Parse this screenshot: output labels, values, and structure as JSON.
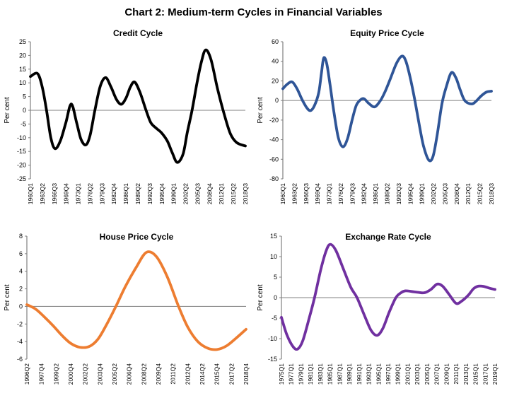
{
  "figure_title": "Chart 2: Medium-term Cycles in Financial Variables",
  "axis": {
    "line_color": "#808080",
    "text_color": "#000000"
  },
  "chart_data": [
    {
      "type": "line",
      "title": "Credit Cycle",
      "ylabel": "Per cent",
      "ylim": [
        -25,
        25
      ],
      "ytick_step": 5,
      "grid": false,
      "legend": "none",
      "line_color": "#000000",
      "x_tick_labels": [
        "1960Q1",
        "1963Q2",
        "1966Q3",
        "1969Q4",
        "1973Q1",
        "1976Q2",
        "1979Q3",
        "1982Q4",
        "1986Q1",
        "1989Q2",
        "1992Q3",
        "1995Q4",
        "1999Q1",
        "2002Q2",
        "2005Q3",
        "2008Q4",
        "2012Q1",
        "2015Q2",
        "2018Q3"
      ],
      "points": [
        [
          0,
          12.3
        ],
        [
          0.033,
          13.4
        ],
        [
          0.055,
          8.5
        ],
        [
          0.075,
          0
        ],
        [
          0.095,
          -10
        ],
        [
          0.115,
          -14
        ],
        [
          0.14,
          -11
        ],
        [
          0.165,
          -4.5
        ],
        [
          0.19,
          2.3
        ],
        [
          0.215,
          -4.5
        ],
        [
          0.235,
          -10.5
        ],
        [
          0.258,
          -12.6
        ],
        [
          0.278,
          -9
        ],
        [
          0.3,
          0
        ],
        [
          0.325,
          8.8
        ],
        [
          0.35,
          11.9
        ],
        [
          0.375,
          8.5
        ],
        [
          0.4,
          4
        ],
        [
          0.423,
          2.2
        ],
        [
          0.445,
          4.5
        ],
        [
          0.465,
          8.5
        ],
        [
          0.485,
          10.3
        ],
        [
          0.51,
          6.5
        ],
        [
          0.538,
          0
        ],
        [
          0.56,
          -4.5
        ],
        [
          0.585,
          -6.5
        ],
        [
          0.61,
          -8.2
        ],
        [
          0.637,
          -11.2
        ],
        [
          0.66,
          -15.5
        ],
        [
          0.683,
          -19
        ],
        [
          0.71,
          -16
        ],
        [
          0.73,
          -8
        ],
        [
          0.752,
          0
        ],
        [
          0.775,
          10
        ],
        [
          0.795,
          17.5
        ],
        [
          0.815,
          22
        ],
        [
          0.84,
          18.5
        ],
        [
          0.87,
          8
        ],
        [
          0.9,
          -1
        ],
        [
          0.93,
          -8.5
        ],
        [
          0.96,
          -11.8
        ],
        [
          1,
          -13
        ]
      ]
    },
    {
      "type": "line",
      "title": "Equity Price Cycle",
      "ylabel": "Per cent",
      "ylim": [
        -80,
        60
      ],
      "ytick_step": 20,
      "grid": false,
      "legend": "none",
      "line_color": "#2F5597",
      "x_tick_labels": [
        "1960Q1",
        "1963Q2",
        "1966Q3",
        "1969Q4",
        "1973Q1",
        "1976Q2",
        "1979Q3",
        "1982Q4",
        "1986Q1",
        "1989Q2",
        "1992Q3",
        "1995Q4",
        "1999Q1",
        "2002Q2",
        "2005Q3",
        "2008Q4",
        "2012Q1",
        "2015Q2",
        "2018Q3"
      ],
      "points": [
        [
          0,
          12
        ],
        [
          0.022,
          16.8
        ],
        [
          0.045,
          18.9
        ],
        [
          0.068,
          12
        ],
        [
          0.092,
          1
        ],
        [
          0.115,
          -7.5
        ],
        [
          0.133,
          -10.3
        ],
        [
          0.152,
          -5
        ],
        [
          0.172,
          8
        ],
        [
          0.185,
          28
        ],
        [
          0.196,
          43.4
        ],
        [
          0.21,
          38
        ],
        [
          0.225,
          18
        ],
        [
          0.245,
          -12
        ],
        [
          0.266,
          -38
        ],
        [
          0.288,
          -47.3
        ],
        [
          0.31,
          -39
        ],
        [
          0.332,
          -20
        ],
        [
          0.352,
          -5
        ],
        [
          0.373,
          0.8
        ],
        [
          0.39,
          1.7
        ],
        [
          0.412,
          -3
        ],
        [
          0.44,
          -6.5
        ],
        [
          0.468,
          0
        ],
        [
          0.49,
          9
        ],
        [
          0.515,
          22
        ],
        [
          0.545,
          38
        ],
        [
          0.571,
          45.3
        ],
        [
          0.59,
          40
        ],
        [
          0.612,
          22
        ],
        [
          0.633,
          0
        ],
        [
          0.655,
          -26
        ],
        [
          0.675,
          -47
        ],
        [
          0.7,
          -61
        ],
        [
          0.72,
          -57
        ],
        [
          0.74,
          -35
        ],
        [
          0.763,
          -3
        ],
        [
          0.785,
          15
        ],
        [
          0.808,
          28.5
        ],
        [
          0.83,
          23
        ],
        [
          0.85,
          11
        ],
        [
          0.872,
          0
        ],
        [
          0.904,
          -3.5
        ],
        [
          0.925,
          -1
        ],
        [
          0.95,
          4.5
        ],
        [
          0.975,
          8.5
        ],
        [
          1,
          9.5
        ]
      ]
    },
    {
      "type": "line",
      "title": "House Price Cycle",
      "ylabel": "Per cent",
      "ylim": [
        -6,
        8
      ],
      "ytick_step": 2,
      "grid": false,
      "legend": "none",
      "line_color": "#ED7D31",
      "x_tick_labels": [
        "1996Q2",
        "1997Q4",
        "1999Q2",
        "2000Q4",
        "2002Q2",
        "2003Q4",
        "2005Q2",
        "2006Q4",
        "2008Q2",
        "2009Q4",
        "2011Q2",
        "2012Q4",
        "2014Q2",
        "2015Q4",
        "2017Q2",
        "2018Q4"
      ],
      "points": [
        [
          0,
          0.2
        ],
        [
          0.04,
          -0.3
        ],
        [
          0.08,
          -1.2
        ],
        [
          0.12,
          -2.2
        ],
        [
          0.16,
          -3.3
        ],
        [
          0.2,
          -4.2
        ],
        [
          0.242,
          -4.65
        ],
        [
          0.285,
          -4.55
        ],
        [
          0.325,
          -3.7
        ],
        [
          0.365,
          -2
        ],
        [
          0.406,
          0
        ],
        [
          0.45,
          2.3
        ],
        [
          0.5,
          4.5
        ],
        [
          0.545,
          6.15
        ],
        [
          0.59,
          5.7
        ],
        [
          0.64,
          3.4
        ],
        [
          0.692,
          0
        ],
        [
          0.735,
          -2.4
        ],
        [
          0.78,
          -4
        ],
        [
          0.825,
          -4.75
        ],
        [
          0.867,
          -4.9
        ],
        [
          0.91,
          -4.5
        ],
        [
          0.955,
          -3.6
        ],
        [
          1,
          -2.6
        ]
      ]
    },
    {
      "type": "line",
      "title": "Exchange Rate Cycle",
      "ylabel": "Per cent",
      "ylim": [
        -15,
        15
      ],
      "ytick_step": 5,
      "grid": false,
      "legend": "none",
      "line_color": "#7030A0",
      "x_tick_labels": [
        "1975Q1",
        "1977Q1",
        "1979Q1",
        "1981Q1",
        "1983Q1",
        "1985Q1",
        "1987Q1",
        "1989Q1",
        "1991Q1",
        "1993Q1",
        "1995Q1",
        "1997Q1",
        "1999Q1",
        "2001Q1",
        "2003Q1",
        "2005Q1",
        "2007Q1",
        "2009Q1",
        "2011Q1",
        "2013Q1",
        "2015Q1",
        "2017Q1",
        "2019Q1"
      ],
      "points": [
        [
          0,
          -4.8
        ],
        [
          0.025,
          -9
        ],
        [
          0.055,
          -12
        ],
        [
          0.077,
          -12.5
        ],
        [
          0.1,
          -10.5
        ],
        [
          0.13,
          -5
        ],
        [
          0.155,
          0
        ],
        [
          0.185,
          7
        ],
        [
          0.21,
          11.5
        ],
        [
          0.229,
          13
        ],
        [
          0.255,
          11.5
        ],
        [
          0.29,
          7
        ],
        [
          0.325,
          2.5
        ],
        [
          0.354,
          0
        ],
        [
          0.39,
          -4.5
        ],
        [
          0.42,
          -8
        ],
        [
          0.448,
          -9.2
        ],
        [
          0.475,
          -7.5
        ],
        [
          0.505,
          -3.5
        ],
        [
          0.536,
          0
        ],
        [
          0.56,
          1.2
        ],
        [
          0.58,
          1.65
        ],
        [
          0.61,
          1.5
        ],
        [
          0.64,
          1.3
        ],
        [
          0.67,
          1.2
        ],
        [
          0.7,
          2
        ],
        [
          0.729,
          3.3
        ],
        [
          0.755,
          2.8
        ],
        [
          0.785,
          0.8
        ],
        [
          0.818,
          -1.4
        ],
        [
          0.845,
          -0.8
        ],
        [
          0.875,
          0.6
        ],
        [
          0.9,
          2.2
        ],
        [
          0.923,
          2.8
        ],
        [
          0.95,
          2.7
        ],
        [
          0.975,
          2.3
        ],
        [
          1,
          2
        ]
      ]
    }
  ]
}
